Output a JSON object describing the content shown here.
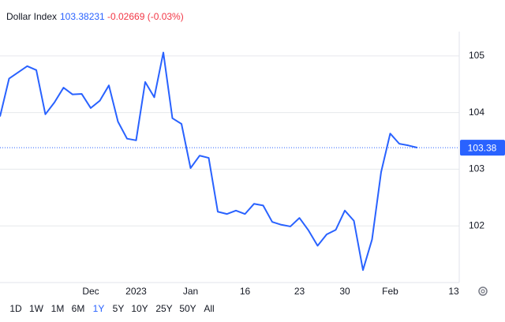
{
  "chart_data": {
    "type": "line",
    "title": "Dollar Index",
    "price": "103.38231",
    "change": "-0.02669 (-0.03%)",
    "last_price": 103.38,
    "categories": [
      null,
      null,
      null,
      null,
      null,
      null,
      null,
      null,
      null,
      null,
      "Dec",
      null,
      null,
      null,
      null,
      "2023",
      null,
      null,
      null,
      null,
      null,
      "Jan",
      null,
      null,
      null,
      null,
      null,
      "16",
      null,
      null,
      null,
      null,
      null,
      "23",
      null,
      null,
      null,
      null,
      "30",
      null,
      null,
      null,
      null,
      "Feb",
      null,
      null,
      null,
      null,
      null,
      null,
      "13"
    ],
    "series": [
      {
        "name": "Dollar Index",
        "color": "#2962ff",
        "values": [
          103.93,
          104.6,
          104.71,
          104.82,
          104.75,
          103.97,
          104.18,
          104.44,
          104.32,
          104.33,
          104.08,
          104.21,
          104.48,
          103.84,
          103.54,
          103.51,
          104.54,
          104.27,
          105.06,
          103.9,
          103.8,
          103.02,
          103.24,
          103.2,
          102.25,
          102.21,
          102.27,
          102.21,
          102.39,
          102.36,
          102.07,
          102.02,
          101.99,
          102.14,
          101.92,
          101.65,
          101.85,
          101.93,
          102.27,
          102.09,
          101.22,
          101.76,
          102.95,
          103.63,
          103.45,
          103.42,
          103.38,
          null,
          null,
          null,
          null
        ]
      }
    ],
    "ylim": [
      101,
      105.43
    ],
    "yticks": [
      102,
      103,
      104,
      105
    ],
    "grid": true,
    "range_buttons": [
      "1D",
      "1W",
      "1M",
      "6M",
      "1Y",
      "5Y",
      "10Y",
      "25Y",
      "50Y",
      "All"
    ],
    "selected_range": "1Y"
  }
}
